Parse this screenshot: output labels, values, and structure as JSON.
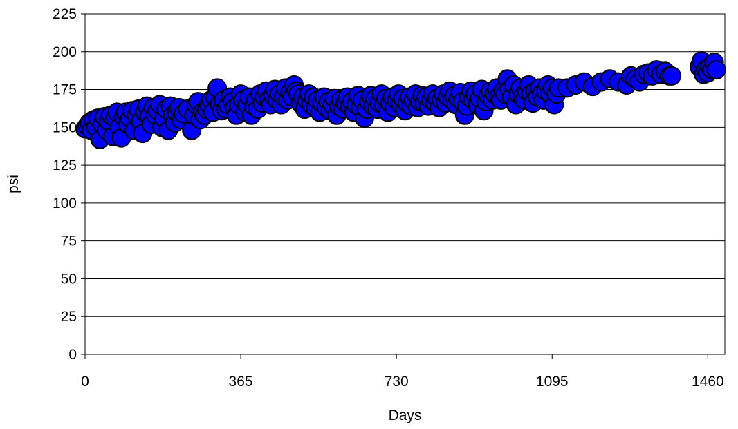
{
  "chart_data": {
    "type": "scatter",
    "title": "",
    "xlabel": "Days",
    "ylabel": "psi",
    "xlim": [
      0,
      1500
    ],
    "ylim": [
      0,
      225
    ],
    "xticks": [
      0,
      365,
      730,
      1095,
      1460
    ],
    "yticks": [
      0,
      25,
      50,
      75,
      100,
      125,
      150,
      175,
      200,
      225
    ],
    "grid": "horizontal",
    "legend": "none",
    "marker_color": "#0000ff",
    "marker_edge": "#000000",
    "series": [
      {
        "points": [
          [
            0,
            149
          ],
          [
            5,
            151
          ],
          [
            10,
            153
          ],
          [
            15,
            148
          ],
          [
            20,
            155
          ],
          [
            25,
            150
          ],
          [
            30,
            156
          ],
          [
            35,
            142
          ],
          [
            40,
            152
          ],
          [
            45,
            157
          ],
          [
            50,
            148
          ],
          [
            55,
            154
          ],
          [
            60,
            158
          ],
          [
            65,
            144
          ],
          [
            70,
            156
          ],
          [
            75,
            160
          ],
          [
            80,
            150
          ],
          [
            85,
            143
          ],
          [
            90,
            157
          ],
          [
            95,
            160
          ],
          [
            100,
            152
          ],
          [
            105,
            156
          ],
          [
            110,
            161
          ],
          [
            115,
            148
          ],
          [
            120,
            158
          ],
          [
            125,
            162
          ],
          [
            130,
            154
          ],
          [
            135,
            146
          ],
          [
            140,
            160
          ],
          [
            145,
            164
          ],
          [
            150,
            157
          ],
          [
            155,
            152
          ],
          [
            160,
            163
          ],
          [
            165,
            158
          ],
          [
            170,
            161
          ],
          [
            175,
            165
          ],
          [
            180,
            150
          ],
          [
            185,
            156
          ],
          [
            190,
            162
          ],
          [
            195,
            148
          ],
          [
            200,
            164
          ],
          [
            205,
            158
          ],
          [
            210,
            153
          ],
          [
            215,
            160
          ],
          [
            220,
            163
          ],
          [
            225,
            155
          ],
          [
            230,
            159
          ],
          [
            240,
            162
          ],
          [
            250,
            148
          ],
          [
            255,
            158
          ],
          [
            260,
            165
          ],
          [
            265,
            167
          ],
          [
            270,
            155
          ],
          [
            275,
            160
          ],
          [
            280,
            158
          ],
          [
            285,
            162
          ],
          [
            290,
            165
          ],
          [
            295,
            168
          ],
          [
            300,
            160
          ],
          [
            305,
            170
          ],
          [
            310,
            176
          ],
          [
            315,
            165
          ],
          [
            320,
            161
          ],
          [
            325,
            168
          ],
          [
            330,
            162
          ],
          [
            335,
            165
          ],
          [
            340,
            170
          ],
          [
            345,
            167
          ],
          [
            350,
            163
          ],
          [
            355,
            158
          ],
          [
            360,
            165
          ],
          [
            365,
            172
          ],
          [
            370,
            168
          ],
          [
            375,
            160
          ],
          [
            380,
            165
          ],
          [
            385,
            170
          ],
          [
            390,
            158
          ],
          [
            395,
            164
          ],
          [
            400,
            168
          ],
          [
            405,
            162
          ],
          [
            410,
            172
          ],
          [
            415,
            166
          ],
          [
            420,
            170
          ],
          [
            425,
            174
          ],
          [
            430,
            168
          ],
          [
            435,
            165
          ],
          [
            440,
            171
          ],
          [
            445,
            175
          ],
          [
            450,
            168
          ],
          [
            455,
            172
          ],
          [
            460,
            165
          ],
          [
            465,
            170
          ],
          [
            470,
            176
          ],
          [
            475,
            168
          ],
          [
            480,
            173
          ],
          [
            485,
            170
          ],
          [
            490,
            178
          ],
          [
            495,
            174
          ],
          [
            500,
            172
          ],
          [
            505,
            166
          ],
          [
            510,
            170
          ],
          [
            515,
            162
          ],
          [
            520,
            168
          ],
          [
            525,
            172
          ],
          [
            530,
            165
          ],
          [
            535,
            170
          ],
          [
            540,
            163
          ],
          [
            545,
            168
          ],
          [
            550,
            160
          ],
          [
            555,
            166
          ],
          [
            560,
            170
          ],
          [
            565,
            163
          ],
          [
            570,
            167
          ],
          [
            575,
            161
          ],
          [
            580,
            165
          ],
          [
            585,
            169
          ],
          [
            590,
            158
          ],
          [
            595,
            164
          ],
          [
            600,
            168
          ],
          [
            605,
            162
          ],
          [
            610,
            166
          ],
          [
            615,
            170
          ],
          [
            620,
            164
          ],
          [
            625,
            167
          ],
          [
            630,
            160
          ],
          [
            635,
            165
          ],
          [
            640,
            171
          ],
          [
            645,
            163
          ],
          [
            650,
            168
          ],
          [
            655,
            156
          ],
          [
            660,
            162
          ],
          [
            665,
            167
          ],
          [
            670,
            171
          ],
          [
            675,
            164
          ],
          [
            680,
            169
          ],
          [
            685,
            162
          ],
          [
            690,
            166
          ],
          [
            695,
            172
          ],
          [
            700,
            165
          ],
          [
            705,
            169
          ],
          [
            710,
            160
          ],
          [
            715,
            166
          ],
          [
            720,
            170
          ],
          [
            725,
            163
          ],
          [
            730,
            168
          ],
          [
            735,
            172
          ],
          [
            740,
            165
          ],
          [
            745,
            169
          ],
          [
            750,
            161
          ],
          [
            755,
            166
          ],
          [
            760,
            170
          ],
          [
            765,
            164
          ],
          [
            770,
            168
          ],
          [
            775,
            172
          ],
          [
            780,
            163
          ],
          [
            785,
            167
          ],
          [
            790,
            171
          ],
          [
            795,
            166
          ],
          [
            800,
            170
          ],
          [
            805,
            164
          ],
          [
            810,
            168
          ],
          [
            815,
            172
          ],
          [
            820,
            166
          ],
          [
            825,
            169
          ],
          [
            830,
            163
          ],
          [
            835,
            168
          ],
          [
            840,
            172
          ],
          [
            845,
            166
          ],
          [
            850,
            170
          ],
          [
            855,
            174
          ],
          [
            860,
            168
          ],
          [
            865,
            171
          ],
          [
            870,
            165
          ],
          [
            875,
            169
          ],
          [
            880,
            173
          ],
          [
            885,
            167
          ],
          [
            890,
            158
          ],
          [
            895,
            164
          ],
          [
            900,
            170
          ],
          [
            905,
            174
          ],
          [
            910,
            168
          ],
          [
            915,
            172
          ],
          [
            920,
            165
          ],
          [
            925,
            169
          ],
          [
            930,
            175
          ],
          [
            935,
            161
          ],
          [
            940,
            167
          ],
          [
            945,
            171
          ],
          [
            950,
            174
          ],
          [
            955,
            168
          ],
          [
            960,
            172
          ],
          [
            965,
            176
          ],
          [
            970,
            170
          ],
          [
            975,
            168
          ],
          [
            980,
            174
          ],
          [
            985,
            172
          ],
          [
            990,
            182
          ],
          [
            995,
            175
          ],
          [
            1000,
            170
          ],
          [
            1005,
            178
          ],
          [
            1010,
            165
          ],
          [
            1015,
            172
          ],
          [
            1020,
            176
          ],
          [
            1025,
            170
          ],
          [
            1030,
            168
          ],
          [
            1035,
            174
          ],
          [
            1040,
            178
          ],
          [
            1045,
            172
          ],
          [
            1050,
            166
          ],
          [
            1055,
            174
          ],
          [
            1060,
            170
          ],
          [
            1065,
            176
          ],
          [
            1070,
            172
          ],
          [
            1075,
            168
          ],
          [
            1080,
            174
          ],
          [
            1085,
            178
          ],
          [
            1090,
            172
          ],
          [
            1095,
            176
          ],
          [
            1100,
            165
          ],
          [
            1105,
            172
          ],
          [
            1110,
            176
          ],
          [
            1130,
            176
          ],
          [
            1150,
            178
          ],
          [
            1170,
            180
          ],
          [
            1190,
            177
          ],
          [
            1210,
            180
          ],
          [
            1230,
            182
          ],
          [
            1250,
            180
          ],
          [
            1270,
            178
          ],
          [
            1280,
            184
          ],
          [
            1290,
            182
          ],
          [
            1300,
            180
          ],
          [
            1310,
            185
          ],
          [
            1320,
            186
          ],
          [
            1330,
            184
          ],
          [
            1340,
            188
          ],
          [
            1350,
            185
          ],
          [
            1360,
            187
          ],
          [
            1370,
            184
          ],
          [
            1375,
            184
          ],
          [
            1440,
            190
          ],
          [
            1445,
            194
          ],
          [
            1450,
            185
          ],
          [
            1455,
            188
          ],
          [
            1460,
            186
          ],
          [
            1465,
            190
          ],
          [
            1470,
            188
          ],
          [
            1475,
            193
          ],
          [
            1480,
            188
          ]
        ]
      }
    ]
  }
}
